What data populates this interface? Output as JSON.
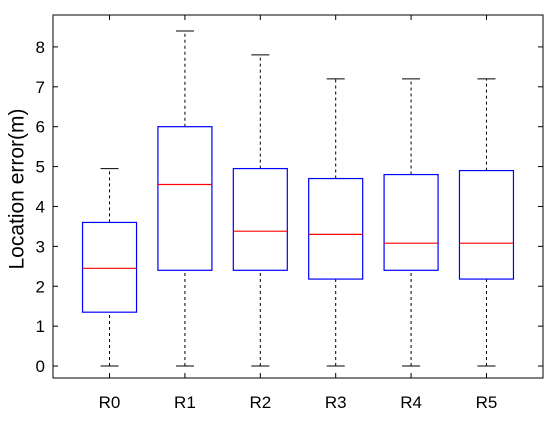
{
  "chart_data": {
    "type": "box",
    "title": "",
    "xlabel": "",
    "ylabel": "Location error(m)",
    "ylim": [
      -0.3,
      8.8
    ],
    "yticks": [
      0,
      1,
      2,
      3,
      4,
      5,
      6,
      7,
      8
    ],
    "grid": false,
    "categories": [
      "R0",
      "R1",
      "R2",
      "R3",
      "R4",
      "R5"
    ],
    "boxes": [
      {
        "label": "R0",
        "min": 0,
        "q1": 1.35,
        "median": 2.45,
        "q3": 3.6,
        "max": 4.95
      },
      {
        "label": "R1",
        "min": 0,
        "q1": 2.4,
        "median": 4.55,
        "q3": 6.0,
        "max": 8.4
      },
      {
        "label": "R2",
        "min": 0,
        "q1": 2.4,
        "median": 3.38,
        "q3": 4.95,
        "max": 7.8
      },
      {
        "label": "R3",
        "min": 0,
        "q1": 2.18,
        "median": 3.3,
        "q3": 4.7,
        "max": 7.2
      },
      {
        "label": "R4",
        "min": 0,
        "q1": 2.4,
        "median": 3.08,
        "q3": 4.8,
        "max": 7.2
      },
      {
        "label": "R5",
        "min": 0,
        "q1": 2.18,
        "median": 3.08,
        "q3": 4.9,
        "max": 7.2
      }
    ],
    "colors": {
      "box": "#0000ff",
      "median": "#ff0000",
      "whisker": "#000000",
      "axis": "#000000"
    }
  }
}
